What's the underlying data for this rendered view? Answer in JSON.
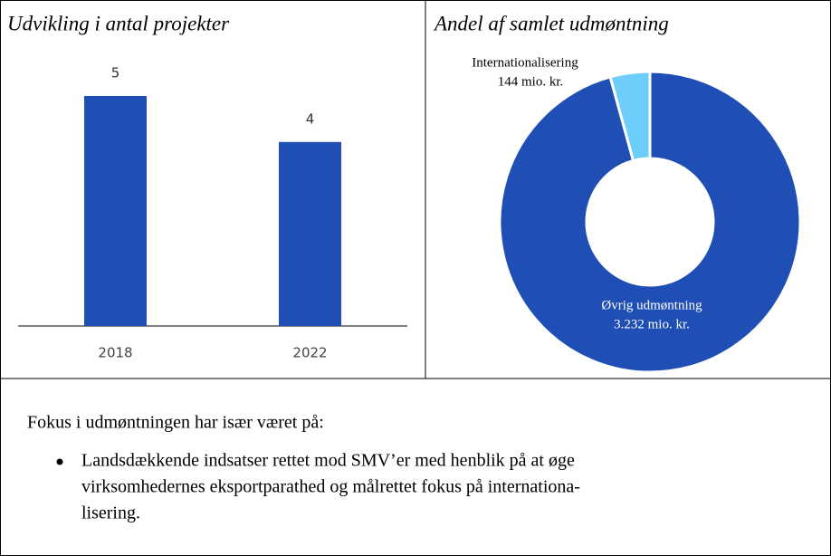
{
  "chart_data": [
    {
      "type": "bar",
      "title": "Udvikling i antal projekter",
      "categories": [
        "2018",
        "2022"
      ],
      "values": [
        5,
        4
      ],
      "color": "#1f4eb4"
    },
    {
      "type": "pie",
      "title": "Andel af samlet udmøntning",
      "categories": [
        "Internationalisering",
        "Øvrig udmøntning"
      ],
      "values": [
        144,
        3232
      ],
      "value_labels": [
        "144 mio. kr.",
        "3.232 mio. kr."
      ],
      "colors": [
        "#6dcdfb",
        "#1f4eb4"
      ],
      "donut": true
    }
  ],
  "text": {
    "intro": "Fokus i udmøntningen har især været på:",
    "bullet_lines": [
      "Landsdækkende indsatser rettet mod SMV’er med henblik på at øge",
      "virksomhedernes eksportparathed og målrettet fokus på internationa-",
      "lisering."
    ]
  }
}
